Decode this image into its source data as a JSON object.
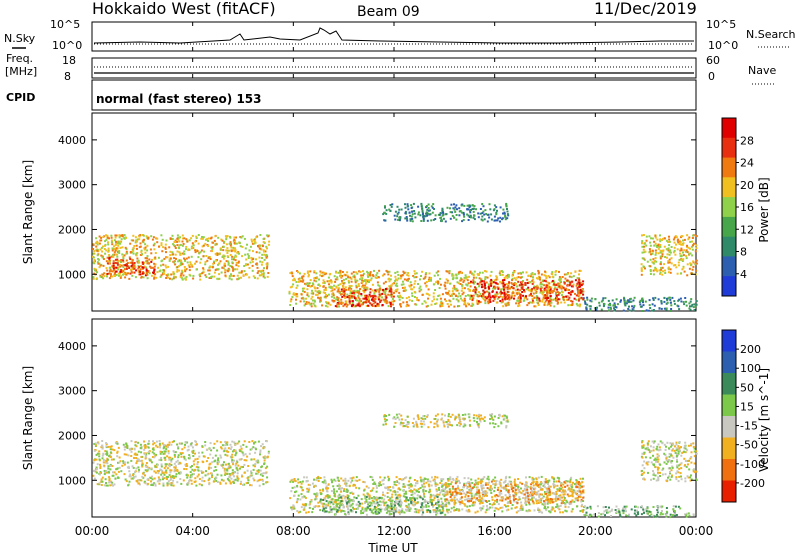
{
  "header": {
    "station": "Hokkaido West (fitACF)",
    "beam": "Beam 09",
    "date": "11/Dec/2019"
  },
  "aux_panels": {
    "nsky_label": "N.Sky",
    "nsky_ticks": [
      "10^5",
      "10^0"
    ],
    "nsearch_label": "N.Search",
    "nsearch_ticks": [
      "10^5",
      "10^0"
    ],
    "freq_label_1": "Freq.",
    "freq_label_2": "[MHz]",
    "freq_ticks": [
      "18",
      "8"
    ],
    "nave_label": "Nave",
    "nave_ticks": [
      "60",
      "0"
    ],
    "cpid_label": "CPID",
    "cpid_text": "normal (fast stereo) 153"
  },
  "colors": {
    "power_scale": [
      "#1f3cd8",
      "#2c5fb0",
      "#2f8a6a",
      "#48a64a",
      "#8fd14a",
      "#f0c020",
      "#f07a10",
      "#e83010",
      "#e00000"
    ],
    "velocity_scale": [
      "#1f3cd8",
      "#2c5fb0",
      "#3a8a5a",
      "#7cc84a",
      "#c8c8c0",
      "#f0b020",
      "#f07010",
      "#e82000"
    ]
  },
  "chart_data": [
    {
      "type": "heatmap",
      "ylabel": "Slant Range [km]",
      "xlabel": "",
      "x_ticks": [
        "00:00",
        "04:00",
        "08:00",
        "12:00",
        "16:00",
        "20:00",
        "00:00"
      ],
      "xlim_hours": [
        0,
        24
      ],
      "y_ticks": [
        1000,
        2000,
        3000,
        4000
      ],
      "ylim": [
        180,
        4600
      ],
      "colorbar": {
        "label": "Power [dB]",
        "ticks": [
          "4",
          "8",
          "12",
          "16",
          "20",
          "24",
          "28"
        ]
      },
      "regions": [
        {
          "t0": 0.0,
          "t1": 7.0,
          "r0": 900,
          "r1": 1900,
          "level": 5
        },
        {
          "t0": 0.5,
          "t1": 2.5,
          "r0": 1000,
          "r1": 1400,
          "level": 7
        },
        {
          "t0": 7.8,
          "t1": 19.5,
          "r0": 300,
          "r1": 1100,
          "level": 5
        },
        {
          "t0": 9.5,
          "t1": 12.0,
          "r0": 300,
          "r1": 700,
          "level": 7
        },
        {
          "t0": 15.0,
          "t1": 19.5,
          "r0": 400,
          "r1": 900,
          "level": 7
        },
        {
          "t0": 11.5,
          "t1": 16.5,
          "r0": 2200,
          "r1": 2600,
          "level": 2
        },
        {
          "t0": 21.8,
          "t1": 24.0,
          "r0": 1000,
          "r1": 1900,
          "level": 5
        },
        {
          "t0": 19.5,
          "t1": 24.0,
          "r0": 200,
          "r1": 500,
          "level": 2
        }
      ]
    },
    {
      "type": "heatmap",
      "ylabel": "Slant Range [km]",
      "xlabel": "Time UT",
      "x_ticks": [
        "00:00",
        "04:00",
        "08:00",
        "12:00",
        "16:00",
        "20:00",
        "00:00"
      ],
      "xlim_hours": [
        0,
        24
      ],
      "y_ticks": [
        1000,
        2000,
        3000,
        4000
      ],
      "ylim": [
        180,
        4600
      ],
      "colorbar": {
        "label": "Velocity [m s^-1]",
        "ticks": [
          "200",
          "100",
          "50",
          "15",
          "-15",
          "-50",
          "-100",
          "-200"
        ]
      },
      "regions": [
        {
          "t0": 0.0,
          "t1": 7.0,
          "r0": 900,
          "r1": 1900,
          "level": 4
        },
        {
          "t0": 7.8,
          "t1": 19.5,
          "r0": 300,
          "r1": 1100,
          "level": 4
        },
        {
          "t0": 9.0,
          "t1": 14.0,
          "r0": 250,
          "r1": 650,
          "level": 3
        },
        {
          "t0": 14.0,
          "t1": 19.5,
          "r0": 500,
          "r1": 1000,
          "level": 5
        },
        {
          "t0": 11.5,
          "t1": 16.5,
          "r0": 2200,
          "r1": 2500,
          "level": 4
        },
        {
          "t0": 21.8,
          "t1": 24.0,
          "r0": 1000,
          "r1": 1900,
          "level": 4
        },
        {
          "t0": 19.5,
          "t1": 24.0,
          "r0": 200,
          "r1": 450,
          "level": 3
        }
      ]
    }
  ]
}
